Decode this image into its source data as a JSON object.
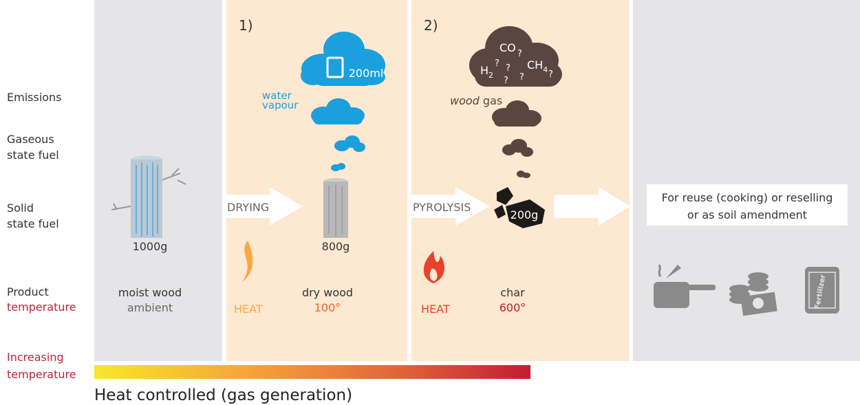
{
  "row_labels": {
    "emissions": "Emissions",
    "gaseous": [
      "Gaseous",
      "state fuel"
    ],
    "solid": [
      "Solid",
      "state fuel"
    ],
    "product": "Product",
    "temperature": "temperature",
    "increasing": [
      "Increasing",
      "temperature"
    ]
  },
  "stage1": {
    "weight": "1000g",
    "product": "moist wood",
    "temperature": "ambient"
  },
  "stage2": {
    "number": "1)",
    "volume": "200ml",
    "emission": [
      "water",
      "vapour"
    ],
    "process": "DRYING",
    "weight": "800g",
    "heat": "HEAT",
    "product": "dry wood",
    "temperature": "100°"
  },
  "stage3": {
    "number": "2)",
    "gases": [
      "CO",
      "?",
      "?",
      "?",
      "?",
      "?",
      "?"
    ],
    "h": "H",
    "h_sub": "2",
    "ch": "CH",
    "ch_sub": "4",
    "emission": [
      "wood",
      " gas"
    ],
    "process": "PYROLYSIS",
    "weight": "200g",
    "heat": "HEAT",
    "product": "char",
    "temperature": "600°"
  },
  "stage4": {
    "uses": [
      "For reuse (cooking) or reselling",
      "or as soil amendment"
    ],
    "bag_label": "Fertilizer"
  },
  "footer": "Heat controlled (gas generation)"
}
